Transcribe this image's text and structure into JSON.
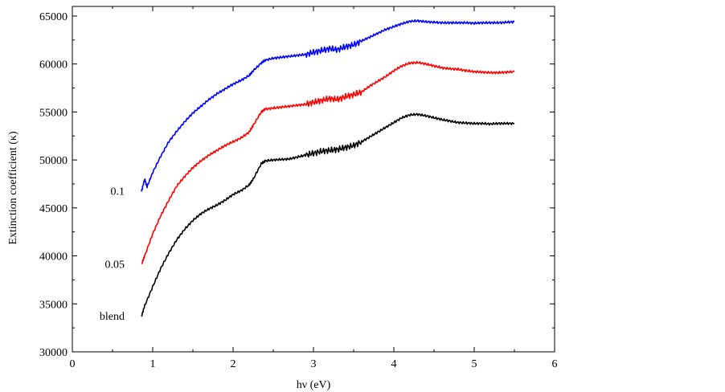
{
  "chart_data": {
    "type": "line",
    "title": "",
    "xlabel": "hν (eV)",
    "ylabel": "Extinction coefficient (κ)",
    "xlim": [
      0,
      6
    ],
    "ylim": [
      30000,
      66000
    ],
    "x_ticks": [
      "0",
      "1",
      "2",
      "3",
      "4",
      "5",
      "6"
    ],
    "y_ticks": [
      "30000",
      "35000",
      "40000",
      "45000",
      "50000",
      "55000",
      "60000",
      "65000"
    ],
    "grid": false,
    "legend": "inline labels at left of curves",
    "series": [
      {
        "name": "0.1",
        "color": "#0000ff",
        "x": [
          0.86,
          0.9,
          0.93,
          1.0,
          1.1,
          1.2,
          1.3,
          1.4,
          1.5,
          1.6,
          1.7,
          1.8,
          1.9,
          2.0,
          2.1,
          2.2,
          2.25,
          2.35,
          2.4,
          2.5,
          2.6,
          2.7,
          2.8,
          2.9,
          3.0,
          3.1,
          3.2,
          3.3,
          3.4,
          3.5,
          3.6,
          3.7,
          3.8,
          3.9,
          4.0,
          4.1,
          4.2,
          4.3,
          4.4,
          4.5,
          4.6,
          4.7,
          4.8,
          4.9,
          5.0,
          5.1,
          5.2,
          5.3,
          5.4,
          5.5
        ],
        "y": [
          46700,
          48000,
          47200,
          48700,
          50400,
          51900,
          53000,
          54000,
          54900,
          55600,
          56300,
          56900,
          57400,
          57900,
          58300,
          58800,
          59300,
          60100,
          60400,
          60600,
          60700,
          60800,
          60900,
          61000,
          61200,
          61400,
          61600,
          61500,
          61800,
          62000,
          62400,
          62800,
          63200,
          63600,
          63900,
          64200,
          64450,
          64500,
          64400,
          64350,
          64300,
          64300,
          64300,
          64300,
          64250,
          64300,
          64300,
          64300,
          64350,
          64400
        ]
      },
      {
        "name": "0.05",
        "color": "#ff0000",
        "x": [
          0.86,
          0.9,
          1.0,
          1.1,
          1.2,
          1.3,
          1.4,
          1.5,
          1.6,
          1.7,
          1.8,
          1.9,
          2.0,
          2.1,
          2.2,
          2.25,
          2.35,
          2.4,
          2.5,
          2.6,
          2.7,
          2.8,
          2.9,
          3.0,
          3.1,
          3.2,
          3.3,
          3.4,
          3.5,
          3.6,
          3.7,
          3.8,
          3.9,
          4.0,
          4.1,
          4.2,
          4.3,
          4.4,
          4.5,
          4.6,
          4.7,
          4.8,
          4.9,
          5.0,
          5.1,
          5.2,
          5.3,
          5.4,
          5.5
        ],
        "y": [
          39100,
          40000,
          42300,
          44200,
          45800,
          47300,
          48300,
          49200,
          49900,
          50500,
          51000,
          51500,
          51900,
          52300,
          52900,
          53600,
          55000,
          55300,
          55400,
          55500,
          55600,
          55700,
          55800,
          56000,
          56200,
          56400,
          56300,
          56600,
          56800,
          57100,
          57700,
          58200,
          58700,
          59300,
          59800,
          60100,
          60150,
          60000,
          59800,
          59600,
          59500,
          59450,
          59300,
          59200,
          59150,
          59100,
          59100,
          59150,
          59200
        ]
      },
      {
        "name": "blend",
        "color": "#000000",
        "x": [
          0.86,
          0.9,
          1.0,
          1.1,
          1.2,
          1.3,
          1.4,
          1.5,
          1.6,
          1.7,
          1.8,
          1.9,
          2.0,
          2.1,
          2.2,
          2.25,
          2.35,
          2.4,
          2.5,
          2.6,
          2.7,
          2.8,
          2.9,
          3.0,
          3.1,
          3.2,
          3.3,
          3.4,
          3.5,
          3.6,
          3.7,
          3.8,
          3.9,
          4.0,
          4.1,
          4.2,
          4.3,
          4.4,
          4.5,
          4.6,
          4.7,
          4.8,
          4.9,
          5.0,
          5.1,
          5.2,
          5.3,
          5.4,
          5.5
        ],
        "y": [
          33700,
          34800,
          36800,
          38700,
          40300,
          41700,
          42800,
          43700,
          44400,
          44900,
          45300,
          45800,
          46400,
          46800,
          47400,
          48000,
          49600,
          49900,
          50000,
          50050,
          50100,
          50300,
          50500,
          50700,
          50900,
          51000,
          51100,
          51300,
          51500,
          51900,
          52400,
          52900,
          53400,
          53900,
          54400,
          54700,
          54750,
          54600,
          54400,
          54200,
          54050,
          53900,
          53850,
          53800,
          53800,
          53750,
          53800,
          53800,
          53800
        ]
      }
    ]
  }
}
